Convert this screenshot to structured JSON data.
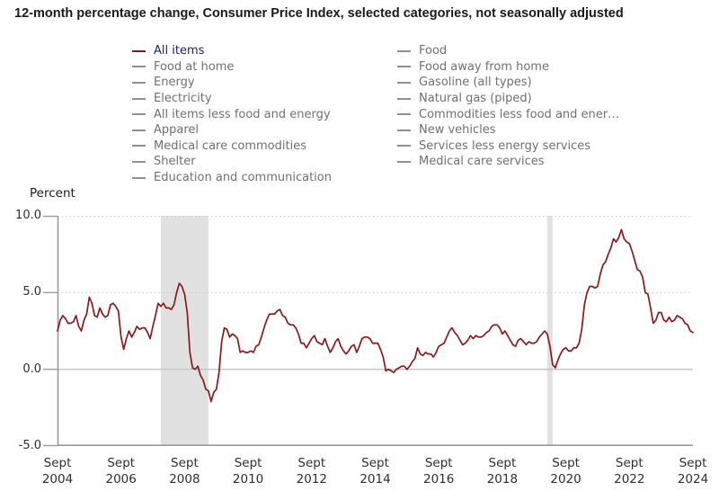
{
  "title": "12-month percentage change, Consumer Price Index, selected categories, not seasonally adjusted",
  "colors": {
    "accent_line": "#861b1e",
    "active_legend_text": "#1c1d6e",
    "inactive_legend_text": "#707070",
    "inactive_legend_dash": "#909090",
    "recession_band": "#e1e1e1",
    "gridline_dotted": "#c9c9c9",
    "zero_line": "#c3c3c3",
    "axis": "#9a9a9a",
    "tick_label": "#2e2e2e"
  },
  "legend": {
    "columns": [
      {
        "items": [
          {
            "label": "All items",
            "active": true
          },
          {
            "label": "Food at home",
            "active": false
          },
          {
            "label": "Energy",
            "active": false
          },
          {
            "label": "Electricity",
            "active": false
          },
          {
            "label": "All items less food and energy",
            "active": false
          },
          {
            "label": "Apparel",
            "active": false
          },
          {
            "label": "Medical care commodities",
            "active": false
          },
          {
            "label": "Shelter",
            "active": false
          },
          {
            "label": "Education and communication",
            "active": false
          }
        ]
      },
      {
        "items": [
          {
            "label": "Food",
            "active": false
          },
          {
            "label": "Food away from home",
            "active": false
          },
          {
            "label": "Gasoline (all types)",
            "active": false
          },
          {
            "label": "Natural gas (piped)",
            "active": false
          },
          {
            "label": "Commodities less food and ener…",
            "active": false
          },
          {
            "label": "New vehicles",
            "active": false
          },
          {
            "label": "Services less energy services",
            "active": false
          },
          {
            "label": "Medical care services",
            "active": false
          }
        ]
      }
    ]
  },
  "chart_data": {
    "type": "line",
    "title": "12-month percentage change, Consumer Price Index, selected categories, not seasonally adjusted",
    "ylabel": "Percent",
    "xlabel": "",
    "ylim": [
      -5.0,
      10.0
    ],
    "grid": "dotted horizontal at 5.0 and 10.0, solid line at 0.0",
    "legend_position": "top",
    "yticks": [
      {
        "label": "10.0",
        "value": 10.0
      },
      {
        "label": "5.0",
        "value": 5.0
      },
      {
        "label": "0.0",
        "value": 0.0
      },
      {
        "label": "-5.0",
        "value": -5.0
      }
    ],
    "xticks": [
      {
        "line1": "Sept",
        "line2": "2004",
        "index": 0
      },
      {
        "line1": "Sept",
        "line2": "2006",
        "index": 24
      },
      {
        "line1": "Sept",
        "line2": "2008",
        "index": 48
      },
      {
        "line1": "Sept",
        "line2": "2010",
        "index": 72
      },
      {
        "line1": "Sept",
        "line2": "2012",
        "index": 96
      },
      {
        "line1": "Sept",
        "line2": "2014",
        "index": 120
      },
      {
        "line1": "Sept",
        "line2": "2016",
        "index": 144
      },
      {
        "line1": "Sept",
        "line2": "2018",
        "index": 168
      },
      {
        "line1": "Sept",
        "line2": "2020",
        "index": 192
      },
      {
        "line1": "Sept",
        "line2": "2022",
        "index": 216
      },
      {
        "line1": "Sept",
        "line2": "2024",
        "index": 240
      }
    ],
    "recession_bands": [
      {
        "start": "2007-12",
        "end": "2009-06"
      },
      {
        "start": "2020-02",
        "end": "2020-04"
      }
    ],
    "series": [
      {
        "name": "All items",
        "color": "#861b1e",
        "start": "2004-09",
        "end": "2024-09",
        "frequency": "monthly",
        "values": [
          2.5,
          3.2,
          3.5,
          3.3,
          3.0,
          3.0,
          3.1,
          3.5,
          2.8,
          2.5,
          3.2,
          3.6,
          4.7,
          4.3,
          3.5,
          3.4,
          4.0,
          3.6,
          3.4,
          3.5,
          4.2,
          4.3,
          4.1,
          3.8,
          2.1,
          1.3,
          2.0,
          2.5,
          2.1,
          2.4,
          2.8,
          2.6,
          2.7,
          2.7,
          2.4,
          2.0,
          2.8,
          3.5,
          4.3,
          4.1,
          4.3,
          4.0,
          4.0,
          3.9,
          4.2,
          5.0,
          5.6,
          5.4,
          4.9,
          3.7,
          1.1,
          0.1,
          0.0,
          0.2,
          -0.4,
          -0.7,
          -1.3,
          -1.4,
          -2.1,
          -1.5,
          -1.3,
          -0.2,
          1.8,
          2.7,
          2.6,
          2.1,
          2.3,
          2.2,
          2.0,
          1.1,
          1.2,
          1.1,
          1.1,
          1.2,
          1.1,
          1.5,
          1.6,
          2.1,
          2.7,
          3.2,
          3.6,
          3.6,
          3.6,
          3.8,
          3.9,
          3.5,
          3.4,
          3.0,
          2.9,
          2.9,
          2.7,
          2.3,
          1.7,
          1.7,
          1.4,
          1.7,
          2.0,
          2.2,
          1.8,
          1.7,
          1.6,
          2.0,
          1.5,
          1.1,
          1.4,
          1.8,
          2.0,
          1.5,
          1.2,
          1.0,
          1.2,
          1.5,
          1.6,
          1.1,
          1.5,
          2.0,
          2.1,
          2.1,
          2.0,
          1.7,
          1.7,
          1.7,
          1.3,
          0.8,
          -0.1,
          0.0,
          -0.1,
          -0.2,
          0.0,
          0.1,
          0.2,
          0.2,
          0.0,
          0.2,
          0.5,
          0.7,
          1.4,
          1.0,
          0.9,
          1.1,
          1.0,
          1.0,
          0.8,
          1.1,
          1.5,
          1.6,
          1.7,
          2.1,
          2.5,
          2.7,
          2.4,
          2.2,
          1.9,
          1.6,
          1.7,
          1.9,
          2.2,
          2.0,
          2.2,
          2.1,
          2.1,
          2.2,
          2.4,
          2.5,
          2.8,
          2.9,
          2.9,
          2.7,
          2.3,
          2.5,
          2.2,
          1.9,
          1.6,
          1.5,
          1.9,
          2.0,
          1.8,
          1.6,
          1.8,
          1.7,
          1.7,
          1.8,
          2.1,
          2.3,
          2.5,
          2.3,
          1.5,
          0.3,
          0.1,
          0.6,
          1.0,
          1.3,
          1.4,
          1.2,
          1.2,
          1.4,
          1.4,
          1.7,
          2.6,
          4.2,
          5.0,
          5.4,
          5.4,
          5.3,
          5.4,
          6.2,
          6.8,
          7.0,
          7.5,
          7.9,
          8.5,
          8.3,
          8.6,
          9.1,
          8.5,
          8.3,
          8.2,
          7.7,
          7.1,
          6.5,
          6.4,
          6.0,
          5.0,
          4.9,
          4.0,
          3.0,
          3.2,
          3.7,
          3.7,
          3.2,
          3.1,
          3.4,
          3.1,
          3.2,
          3.5,
          3.4,
          3.3,
          3.0,
          2.9,
          2.5,
          2.4
        ]
      }
    ]
  }
}
